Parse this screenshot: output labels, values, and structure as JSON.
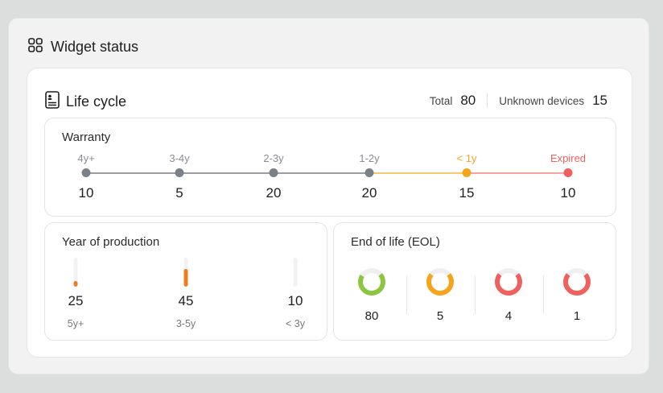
{
  "widget": {
    "title": "Widget status",
    "icon": "grid-icon"
  },
  "lifecycle": {
    "title": "Life cycle",
    "icon": "document-icon",
    "total_label": "Total",
    "total_value": "80",
    "unknown_label": "Unknown devices",
    "unknown_value": "15"
  },
  "warranty": {
    "title": "Warranty",
    "items": [
      {
        "label": "4y+",
        "value": "10",
        "color": "#7c8088"
      },
      {
        "label": "3-4y",
        "value": "5",
        "color": "#7c8088"
      },
      {
        "label": "2-3y",
        "value": "20",
        "color": "#7c8088"
      },
      {
        "label": "1-2y",
        "value": "20",
        "color": "#7c8088"
      },
      {
        "label": "< 1y",
        "value": "15",
        "color": "#f5a51c"
      },
      {
        "label": "Expired",
        "value": "10",
        "color": "#f0605d"
      }
    ]
  },
  "production": {
    "title": "Year of production",
    "items": [
      {
        "label": "5y+",
        "value": "25",
        "fill": 0.2
      },
      {
        "label": "3-5y",
        "value": "45",
        "fill": 0.6
      },
      {
        "label": "< 3y",
        "value": "10",
        "fill": 0
      }
    ]
  },
  "eol": {
    "title": "End of life (EOL)",
    "items": [
      {
        "value": "80",
        "color": "#8cc63f",
        "fraction": 0.7
      },
      {
        "value": "5",
        "color": "#f5a51c",
        "fraction": 0.72
      },
      {
        "value": "4",
        "color": "#f0605d",
        "fraction": 0.72
      },
      {
        "value": "1",
        "color": "#f0605d",
        "fraction": 0.72
      }
    ]
  }
}
